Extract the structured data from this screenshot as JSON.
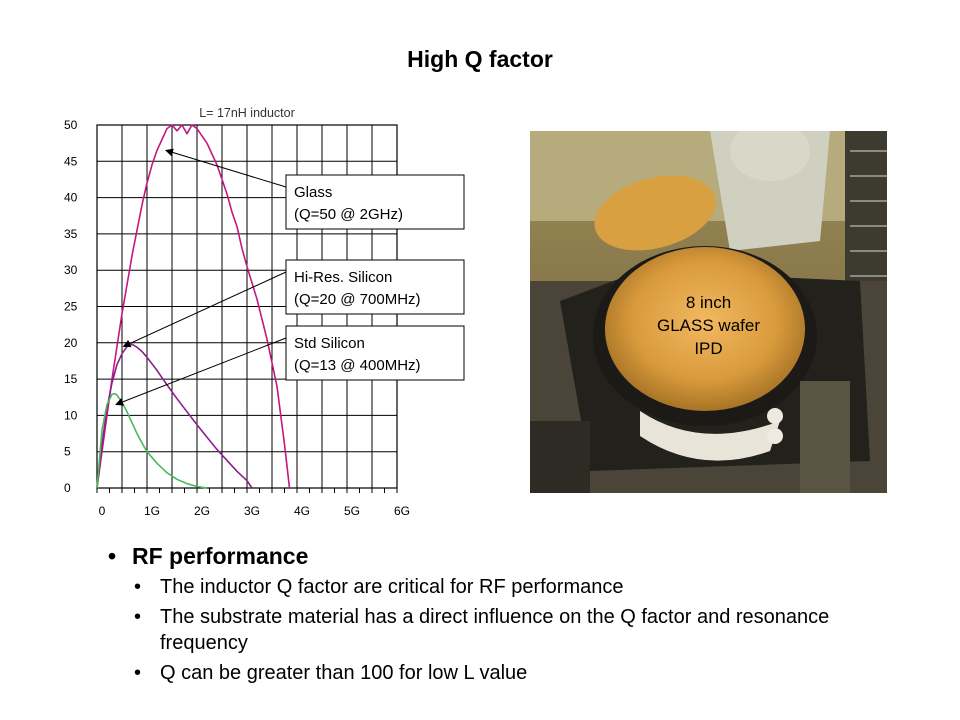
{
  "slide": {
    "title": "High Q factor"
  },
  "chart_data": {
    "type": "line",
    "title": "L= 17nH inductor",
    "xlabel": "",
    "ylabel": "",
    "x_ticks": [
      "0",
      "1G",
      "2G",
      "3G",
      "4G",
      "5G",
      "6G"
    ],
    "y_ticks": [
      "0",
      "5",
      "10",
      "15",
      "20",
      "25",
      "30",
      "35",
      "40",
      "45",
      "50"
    ],
    "xlim_ghz": [
      0,
      6
    ],
    "ylim": [
      0,
      50
    ],
    "grid": true,
    "series": [
      {
        "key": "glass",
        "color": "#c4187f",
        "x_ghz": [
          0.0,
          0.1,
          0.2,
          0.3,
          0.4,
          0.5,
          0.6,
          0.7,
          0.8,
          0.9,
          1.0,
          1.1,
          1.2,
          1.3,
          1.4,
          1.5,
          1.6,
          1.7,
          1.8,
          1.9,
          2.0,
          2.1,
          2.2,
          2.3,
          2.4,
          2.5,
          2.6,
          2.7,
          2.8,
          2.9,
          3.0,
          3.2,
          3.4,
          3.6,
          3.75,
          3.85
        ],
        "y": [
          0,
          5,
          10,
          15,
          19.5,
          24,
          28,
          32,
          35.5,
          39,
          42,
          44.5,
          46.5,
          48,
          49.5,
          50,
          49.2,
          50,
          48.8,
          50,
          49.5,
          48.5,
          47.5,
          46,
          44.5,
          42.5,
          40.5,
          38,
          36,
          33,
          30.5,
          26,
          20.5,
          14,
          6,
          0
        ]
      },
      {
        "key": "hi_res_silicon",
        "color": "#8b1e8e",
        "x_ghz": [
          0.0,
          0.1,
          0.2,
          0.3,
          0.4,
          0.5,
          0.6,
          0.7,
          0.8,
          0.9,
          1.0,
          1.2,
          1.4,
          1.6,
          1.8,
          2.0,
          2.2,
          2.4,
          2.6,
          2.8,
          3.0,
          3.1
        ],
        "y": [
          0,
          6,
          11,
          14.5,
          17,
          18.5,
          19.5,
          19.8,
          19.4,
          18.8,
          18,
          16.2,
          14.2,
          12.3,
          10.5,
          8.7,
          7,
          5.3,
          3.8,
          2.3,
          1,
          0
        ]
      },
      {
        "key": "std_silicon",
        "color": "#4bb95a",
        "x_ghz": [
          0.0,
          0.05,
          0.1,
          0.2,
          0.3,
          0.35,
          0.4,
          0.5,
          0.6,
          0.7,
          0.8,
          0.9,
          1.0,
          1.2,
          1.4,
          1.6,
          1.8,
          2.0,
          2.2
        ],
        "y": [
          0,
          4,
          8,
          11.5,
          12.9,
          13,
          12.8,
          11.8,
          10.5,
          9,
          7.5,
          6.2,
          5,
          3.4,
          2.1,
          1.2,
          0.6,
          0.2,
          0
        ]
      }
    ],
    "annotations": [
      {
        "key": "glass",
        "line1": "Glass",
        "line2": "(Q=50 @ 2GHz)"
      },
      {
        "key": "hi_res_silicon",
        "line1": "Hi-Res. Silicon",
        "line2": "(Q=20 @ 700MHz)"
      },
      {
        "key": "std_silicon",
        "line1": "Std Silicon",
        "line2": "(Q=13 @ 400MHz)"
      }
    ]
  },
  "photo": {
    "caption_line1": "8 inch",
    "caption_line2": "GLASS wafer",
    "caption_line3": "IPD"
  },
  "bullets": {
    "heading": "RF performance",
    "marker": "•",
    "items": [
      "The inductor Q factor are critical for RF performance",
      "The substrate material has a direct influence on the Q factor and resonance frequency",
      "Q can be greater than 100 for low L value"
    ]
  }
}
